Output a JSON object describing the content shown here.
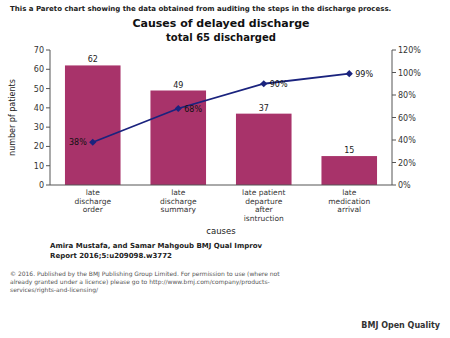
{
  "chart_data": {
    "type": "bar",
    "title": "Causes of delayed discharge",
    "subtitle": "total 65 discharged",
    "categories": [
      "late\ndischarge\norder",
      "late\ndischarge\nsummary",
      "late patient\ndeparture\nafter\nisntruction",
      "late\nmedication\narrival"
    ],
    "xlabel": "causes",
    "ylabel": "number pf patients",
    "ylim": [
      0,
      70
    ],
    "yticks": [
      0,
      10,
      20,
      30,
      40,
      50,
      60,
      70
    ],
    "y2lim": [
      0,
      120
    ],
    "y2ticks": [
      {
        "value": 0,
        "label": "0%"
      },
      {
        "value": 20,
        "label": "20%"
      },
      {
        "value": 40,
        "label": "40%"
      },
      {
        "value": 60,
        "label": "60%"
      },
      {
        "value": 80,
        "label": "80%"
      },
      {
        "value": 100,
        "label": "100%"
      },
      {
        "value": 120,
        "label": "120%"
      }
    ],
    "grid": false,
    "series": [
      {
        "type": "bar",
        "color": "#a8336a",
        "values": [
          62,
          49,
          37,
          15
        ],
        "data_labels": true
      },
      {
        "type": "line",
        "axis": "y2",
        "color": "#1a237e",
        "marker": "diamond",
        "values": [
          38,
          68,
          90,
          99
        ],
        "value_labels": [
          "38%",
          "68%",
          "90%",
          "99%"
        ],
        "data_labels": true
      }
    ],
    "annotations": [
      "This a Pareto chart showing the data obtained from auditing the steps in the discharge process.",
      "Amira Mustafa, and Samar Mahgoub BMJ Qual Improv",
      "Report 2016;5:u209098.w3772",
      "© 2016. Published by the BMJ Publishing Group Limited. For permission to use (where not\nalready granted under a licence) please go to http://www.bmj.com/company/products-\nservices/rights-and-licensing/",
      "BMJ Open Quality"
    ]
  }
}
